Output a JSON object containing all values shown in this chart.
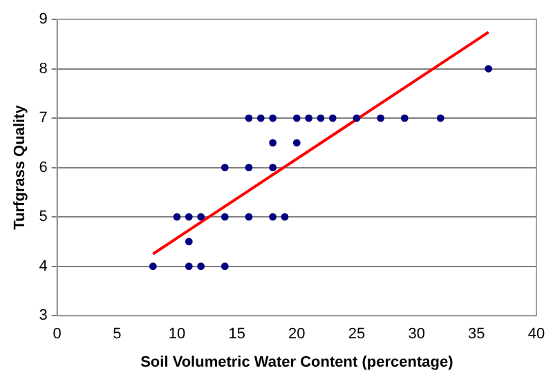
{
  "chart_data": {
    "type": "scatter",
    "xlabel": "Soil Volumetric Water Content (percentage)",
    "ylabel": "Turfgrass Quality",
    "xlim": [
      0,
      40
    ],
    "xticks": [
      0,
      5,
      10,
      15,
      20,
      25,
      30,
      35,
      40
    ],
    "ylim": [
      3,
      9
    ],
    "yticks": [
      3,
      4,
      5,
      6,
      7,
      8,
      9
    ],
    "grid": "y",
    "legend": false,
    "series": [
      {
        "color": "#000080",
        "marker": "circle",
        "x": [
          8,
          11,
          12,
          14,
          11,
          10,
          11,
          12,
          14,
          16,
          18,
          19,
          14,
          16,
          18,
          18,
          20,
          16,
          17,
          18,
          20,
          21,
          22,
          23,
          25,
          27,
          29,
          32,
          36
        ],
        "values": [
          4,
          4,
          4,
          4,
          4.5,
          5,
          5,
          5,
          5,
          5,
          5,
          5,
          6,
          6,
          6,
          6.5,
          6.5,
          7,
          7,
          7,
          7,
          7,
          7,
          7,
          7,
          7,
          7,
          7,
          8
        ]
      },
      {
        "type": "line",
        "color": "#ff0000",
        "marker": "none",
        "x": [
          8,
          36
        ],
        "values": [
          4.25,
          8.74
        ]
      }
    ]
  }
}
